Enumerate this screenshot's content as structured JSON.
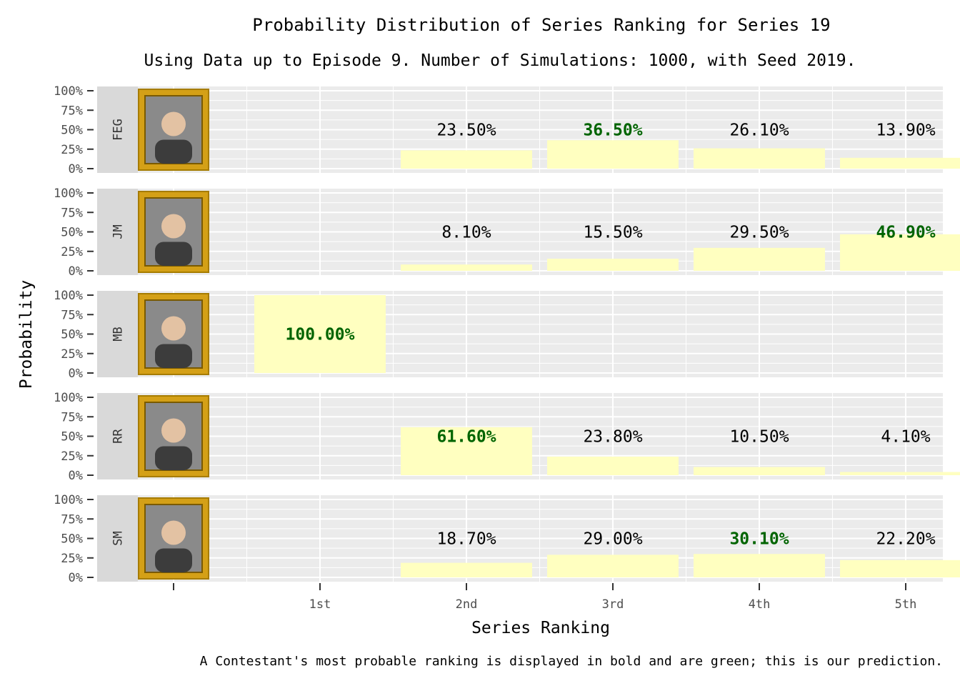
{
  "chart_data": {
    "type": "bar",
    "title": "Probability Distribution of Series Ranking for Series 19",
    "subtitle": "Using Data up to Episode 9. Number of Simulations: 1000, with Seed 2019.",
    "xlabel": "Series Ranking",
    "ylabel": "Probability",
    "caption": "A Contestant's most probable ranking is displayed in bold and are green; this is our prediction.",
    "categories": [
      "1st",
      "2nd",
      "3rd",
      "4th",
      "5th"
    ],
    "y_ticks": [
      "0%",
      "25%",
      "50%",
      "75%",
      "100%"
    ],
    "ylim": [
      0,
      1
    ],
    "grid": true,
    "facets": "rows",
    "series": [
      {
        "name": "FEG",
        "values": [
          0,
          0.235,
          0.365,
          0.261,
          0.139
        ],
        "labels": [
          "",
          "23.50%",
          "36.50%",
          "26.10%",
          "13.90%"
        ],
        "best": 2
      },
      {
        "name": "JM",
        "values": [
          0,
          0.081,
          0.155,
          0.295,
          0.469
        ],
        "labels": [
          "",
          "8.10%",
          "15.50%",
          "29.50%",
          "46.90%"
        ],
        "best": 4
      },
      {
        "name": "MB",
        "values": [
          1.0,
          0,
          0,
          0,
          0
        ],
        "labels": [
          "100.00%",
          "",
          "",
          "",
          ""
        ],
        "best": 0
      },
      {
        "name": "RR",
        "values": [
          0,
          0.616,
          0.238,
          0.105,
          0.041
        ],
        "labels": [
          "",
          "61.60%",
          "23.80%",
          "10.50%",
          "4.10%"
        ],
        "best": 1
      },
      {
        "name": "SM",
        "values": [
          0,
          0.187,
          0.29,
          0.301,
          0.222
        ],
        "labels": [
          "",
          "18.70%",
          "29.00%",
          "30.10%",
          "22.20%"
        ],
        "best": 3
      }
    ],
    "colors": {
      "bar": "#ffffc0",
      "panel": "#ebebeb",
      "strip": "#d9d9d9",
      "grid": "#ffffff",
      "best_label": "#006400",
      "label": "#000000",
      "frame": "#d4a017"
    },
    "portrait_icons": [
      "framed-portrait-icon",
      "framed-portrait-icon",
      "framed-portrait-icon",
      "framed-portrait-icon",
      "framed-portrait-icon"
    ]
  }
}
